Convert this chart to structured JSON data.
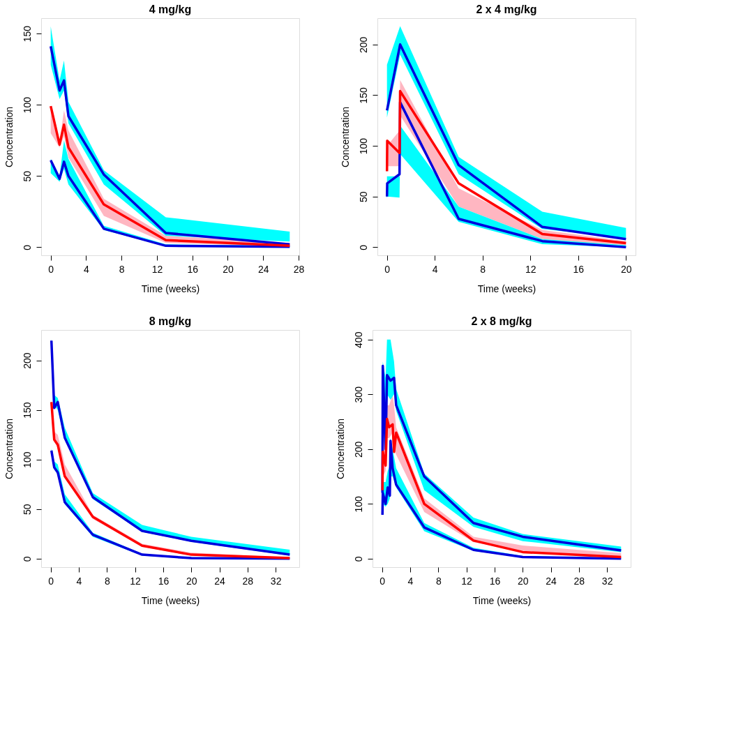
{
  "chart_data": [
    {
      "type": "line",
      "title": "4 mg/kg",
      "xlabel": "Time (weeks)",
      "ylabel": "Concentration",
      "xlim": [
        -1.08,
        28.08
      ],
      "ylim": [
        -5.7,
        160.8
      ],
      "xticks": [
        0,
        4,
        8,
        12,
        16,
        20,
        24,
        28
      ],
      "yticks": [
        0,
        50,
        100,
        150
      ],
      "grid": false,
      "line_style": "solid",
      "marker": "none",
      "series": [
        {
          "color": "#0000dd",
          "x": [
            0,
            1,
            1.5,
            2,
            6,
            13,
            27
          ],
          "values": [
            141,
            110,
            117,
            92,
            51,
            10,
            2
          ],
          "lower": [
            128,
            104,
            110,
            87,
            44,
            8,
            4
          ],
          "upper": [
            155,
            117,
            131,
            102,
            54,
            21,
            11
          ]
        },
        {
          "color": "#0000dd",
          "x": [
            0,
            1,
            1.5,
            2,
            6,
            13,
            27
          ],
          "values": [
            61,
            48,
            60,
            50,
            13,
            1,
            0.3
          ],
          "lower": [
            52,
            46,
            55,
            44,
            12,
            0.5,
            0
          ],
          "upper": [
            62,
            50,
            75,
            62,
            15,
            2,
            1
          ]
        },
        {
          "color": "#ff0000",
          "x": [
            0,
            1,
            1.5,
            2,
            6,
            13,
            27
          ],
          "values": [
            99,
            72,
            86,
            70,
            30,
            5,
            1
          ],
          "lower": [
            80,
            70,
            78,
            63,
            22,
            3,
            0.5
          ],
          "upper": [
            96,
            74,
            96,
            82,
            34,
            8,
            3
          ]
        }
      ]
    },
    {
      "type": "line",
      "title": "2 x 4 mg/kg",
      "xlabel": "Time (weeks)",
      "ylabel": "Concentration",
      "xlim": [
        -0.8,
        20.8
      ],
      "ylim": [
        -8,
        226
      ],
      "xticks": [
        0,
        4,
        8,
        12,
        16,
        20
      ],
      "yticks": [
        0,
        50,
        100,
        150,
        200
      ],
      "grid": false,
      "line_style": "solid",
      "marker": "none",
      "series": [
        {
          "color": "#0000dd",
          "x": [
            0,
            1.1,
            6,
            13,
            20
          ],
          "values": [
            135,
            200,
            81,
            20,
            8
          ],
          "lower": [
            128,
            190,
            72,
            18,
            9
          ],
          "upper": [
            180,
            218,
            89,
            35,
            19
          ]
        },
        {
          "color": "#0000dd",
          "x": [
            0,
            0.02,
            1.05,
            1.1,
            6,
            13,
            20
          ],
          "values": [
            50,
            63,
            72,
            143,
            28,
            6,
            0
          ],
          "lower": [
            48,
            50,
            49,
            92,
            25,
            3,
            0
          ],
          "upper": [
            70,
            70,
            70,
            120,
            40,
            8,
            2
          ]
        },
        {
          "color": "#ff0000",
          "x": [
            0,
            0.02,
            1.05,
            1.1,
            6,
            13,
            20
          ],
          "values": [
            75,
            105,
            93,
            154,
            63,
            13,
            4
          ],
          "lower": [
            80,
            80,
            80,
            130,
            40,
            8,
            1
          ],
          "upper": [
            100,
            100,
            115,
            165,
            58,
            17,
            6
          ]
        }
      ]
    },
    {
      "type": "line",
      "title": "8 mg/kg",
      "xlabel": "Time (weeks)",
      "ylabel": "Concentration",
      "xlim": [
        -1.36,
        35.36
      ],
      "ylim": [
        -8.6,
        230.7
      ],
      "xticks": [
        0,
        4,
        8,
        12,
        16,
        20,
        24,
        28,
        32
      ],
      "yticks": [
        0,
        50,
        100,
        150,
        200
      ],
      "grid": false,
      "line_style": "solid",
      "marker": "none",
      "series": [
        {
          "color": "#0000dd",
          "x": [
            0.1,
            0.5,
            1,
            2,
            6,
            13,
            20,
            34
          ],
          "values": [
            220,
            152,
            158,
            122,
            62,
            28,
            18,
            4
          ],
          "lower": [
            215,
            155,
            150,
            120,
            60,
            27,
            17,
            3
          ],
          "upper": [
            222,
            165,
            162,
            132,
            66,
            34,
            22,
            9
          ]
        },
        {
          "color": "#0000dd",
          "x": [
            0.1,
            0.5,
            1,
            2,
            6,
            13,
            20,
            34
          ],
          "values": [
            109,
            92,
            87,
            57,
            24,
            4,
            0.5,
            0
          ],
          "lower": [
            105,
            90,
            85,
            55,
            22,
            3,
            0,
            0
          ],
          "upper": [
            111,
            98,
            95,
            65,
            26,
            5,
            1,
            0.5
          ]
        },
        {
          "color": "#ff0000",
          "x": [
            0.1,
            0.5,
            1,
            2,
            6,
            13,
            20,
            34
          ],
          "values": [
            158,
            120,
            115,
            83,
            42,
            13,
            4,
            0.5
          ],
          "lower": [
            150,
            118,
            112,
            82,
            40,
            12,
            3,
            0
          ],
          "upper": [
            160,
            128,
            125,
            95,
            44,
            15,
            6,
            1
          ]
        }
      ]
    },
    {
      "type": "line",
      "title": "2 x 8 mg/kg",
      "xlabel": "Time (weeks)",
      "ylabel": "Concentration",
      "xlim": [
        -1.36,
        35.36
      ],
      "ylim": [
        -15.5,
        417.5
      ],
      "xticks": [
        0,
        4,
        8,
        12,
        16,
        20,
        24,
        28,
        32
      ],
      "yticks": [
        0,
        100,
        200,
        300,
        400
      ],
      "grid": false,
      "line_style": "solid",
      "marker": "none",
      "series": [
        {
          "color": "#0000dd",
          "x": [
            0.05,
            0.1,
            0.5,
            0.7,
            1.2,
            1.7,
            2,
            6,
            13,
            20,
            34
          ],
          "values": [
            120,
            352,
            200,
            335,
            325,
            330,
            280,
            150,
            65,
            40,
            15
          ],
          "lower": [
            110,
            290,
            190,
            300,
            290,
            300,
            270,
            125,
            58,
            32,
            12
          ],
          "upper": [
            150,
            360,
            330,
            400,
            400,
            360,
            310,
            155,
            75,
            45,
            22
          ]
        },
        {
          "color": "#0000dd",
          "x": [
            0.05,
            0.1,
            0.5,
            0.8,
            1.1,
            1.2,
            1.5,
            2,
            6,
            13,
            20,
            34
          ],
          "values": [
            80,
            120,
            100,
            130,
            115,
            215,
            165,
            135,
            57,
            16,
            3,
            0
          ],
          "lower": [
            90,
            100,
            95,
            100,
            110,
            150,
            150,
            130,
            50,
            14,
            2,
            0
          ],
          "upper": [
            130,
            140,
            140,
            160,
            170,
            220,
            200,
            165,
            65,
            20,
            5,
            1
          ]
        },
        {
          "color": "#ff0000",
          "x": [
            0.05,
            0.1,
            0.5,
            0.7,
            1,
            1.5,
            1.7,
            2,
            6,
            13,
            20,
            34
          ],
          "values": [
            125,
            195,
            170,
            255,
            240,
            245,
            195,
            230,
            100,
            33,
            12,
            3
          ],
          "lower": [
            130,
            150,
            160,
            220,
            220,
            230,
            200,
            190,
            85,
            30,
            14,
            3
          ],
          "upper": [
            200,
            230,
            250,
            280,
            280,
            300,
            280,
            240,
            110,
            40,
            24,
            10
          ]
        }
      ]
    }
  ]
}
